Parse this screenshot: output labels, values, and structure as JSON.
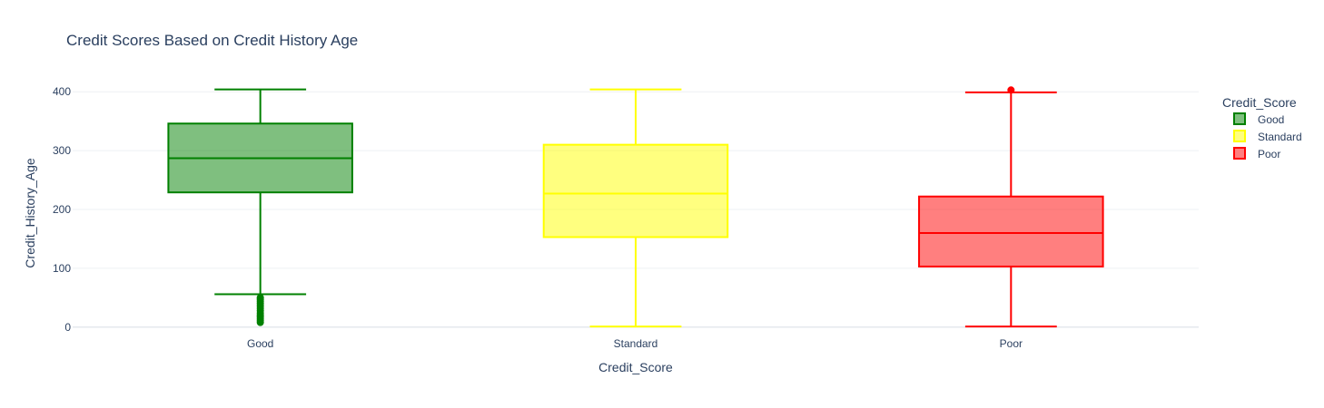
{
  "chart_data": {
    "type": "box",
    "title": "Credit Scores Based on Credit History Age",
    "xlabel": "Credit_Score",
    "ylabel": "Credit_History_Age",
    "ylim": [
      -8,
      425
    ],
    "yticks": [
      0,
      100,
      200,
      300,
      400
    ],
    "categories": [
      "Good",
      "Standard",
      "Poor"
    ],
    "legend_title": "Credit_Score",
    "legend_position": "top-right",
    "grid": true,
    "series": [
      {
        "name": "Good",
        "color": "#008000",
        "fill": "rgba(0,128,0,0.5)",
        "min": 56,
        "q1": 229,
        "median": 287,
        "q3": 346,
        "max": 404,
        "outliers": [
          8,
          11,
          14,
          17,
          20,
          24,
          28,
          32,
          36,
          40,
          44,
          47,
          50
        ]
      },
      {
        "name": "Standard",
        "color": "#ffff00",
        "fill": "rgba(255,255,0,0.5)",
        "min": 1,
        "q1": 153,
        "median": 227,
        "q3": 310,
        "max": 404,
        "outliers": []
      },
      {
        "name": "Poor",
        "color": "#ff0000",
        "fill": "rgba(255,0,0,0.5)",
        "min": 1,
        "q1": 103,
        "median": 160,
        "q3": 222,
        "max": 399,
        "outliers": [
          403
        ]
      }
    ]
  }
}
